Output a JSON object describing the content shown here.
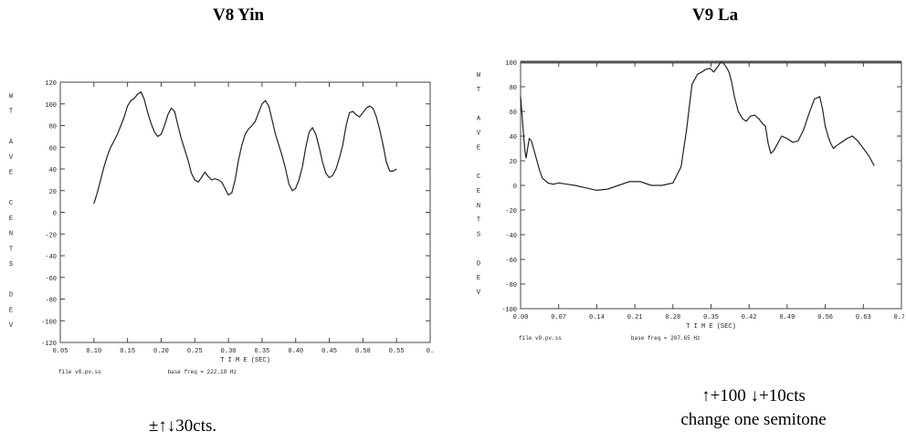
{
  "chart_data": [
    {
      "type": "line",
      "title": "V8 Yin",
      "xlabel": "T I M E (SEC)",
      "ylabel": [
        "W",
        "T",
        "",
        "A",
        "V",
        "E",
        "",
        "C",
        "E",
        "N",
        "T",
        "S",
        "",
        "D",
        "E",
        "V"
      ],
      "xlim": [
        0.05,
        0.6
      ],
      "ylim": [
        -120,
        120
      ],
      "xticks": [
        "0.05",
        "0.10",
        "0.15",
        "0.20",
        "0.25",
        "0.30",
        "0.35",
        "0.40",
        "0.45",
        "0.50",
        "0.55",
        "0."
      ],
      "yticks": [
        "120",
        "100",
        "80",
        "60",
        "40",
        "20",
        "0",
        "-20",
        "-40",
        "-60",
        "-80",
        "-100",
        "-120"
      ],
      "footer_left": "file v8.pv.ss",
      "footer_right": "base freq = 222.18 Hz",
      "caption": [
        "±↑↓30cts."
      ],
      "series": [
        {
          "x": [
            0.1,
            0.105,
            0.11,
            0.115,
            0.12,
            0.125,
            0.13,
            0.135,
            0.14,
            0.145,
            0.15,
            0.155,
            0.16,
            0.165,
            0.17,
            0.175,
            0.18,
            0.185,
            0.19,
            0.195,
            0.2,
            0.205,
            0.21,
            0.215,
            0.22,
            0.225,
            0.23,
            0.235,
            0.24,
            0.245,
            0.25,
            0.255,
            0.26,
            0.265,
            0.27,
            0.275,
            0.28,
            0.285,
            0.29,
            0.295,
            0.3,
            0.305,
            0.31,
            0.315,
            0.32,
            0.325,
            0.33,
            0.335,
            0.34,
            0.345,
            0.35,
            0.355,
            0.36,
            0.365,
            0.37,
            0.375,
            0.38,
            0.385,
            0.39,
            0.395,
            0.4,
            0.405,
            0.41,
            0.415,
            0.42,
            0.425,
            0.43,
            0.435,
            0.44,
            0.445,
            0.45,
            0.455,
            0.46,
            0.465,
            0.47,
            0.475,
            0.48,
            0.485,
            0.49,
            0.495,
            0.5,
            0.505,
            0.51,
            0.515,
            0.52,
            0.525,
            0.53,
            0.535,
            0.54,
            0.545,
            0.55
          ],
          "y": [
            8,
            18,
            30,
            42,
            52,
            60,
            66,
            72,
            80,
            88,
            98,
            103,
            105,
            109,
            111,
            104,
            92,
            82,
            74,
            70,
            72,
            80,
            90,
            96,
            93,
            80,
            68,
            58,
            48,
            36,
            30,
            28,
            32,
            37,
            33,
            30,
            31,
            30,
            28,
            22,
            16,
            18,
            30,
            48,
            62,
            72,
            77,
            80,
            84,
            92,
            100,
            103,
            98,
            85,
            72,
            62,
            52,
            40,
            26,
            20,
            22,
            30,
            42,
            60,
            74,
            78,
            72,
            60,
            46,
            36,
            32,
            34,
            40,
            50,
            62,
            80,
            92,
            93,
            90,
            88,
            92,
            96,
            98,
            96,
            88,
            76,
            62,
            46,
            38,
            38,
            40
          ]
        }
      ]
    },
    {
      "type": "line",
      "title": "V9 La",
      "xlabel": "T I M E (SEC)",
      "ylabel": [
        "W",
        "T",
        "",
        "A",
        "V",
        "E",
        "",
        "C",
        "E",
        "N",
        "T",
        "S",
        "",
        "D",
        "E",
        "V"
      ],
      "xlim": [
        0.0,
        0.7
      ],
      "ylim": [
        -100,
        100
      ],
      "xticks": [
        "0.00",
        "0.07",
        "0.14",
        "0.21",
        "0.28",
        "0.35",
        "0.42",
        "0.49",
        "0.56",
        "0.63",
        "0.70"
      ],
      "yticks": [
        "100",
        "80",
        "60",
        "40",
        "20",
        "0",
        "-20",
        "-40",
        "-60",
        "-80",
        "-100"
      ],
      "footer_left": "file v9.pv.ss",
      "footer_right": "base freq = 207.65 Hz",
      "caption": [
        "↑+100 ↓+10cts",
        "change one semitone"
      ],
      "series": [
        {
          "x": [
            0.0,
            0.003,
            0.006,
            0.008,
            0.01,
            0.013,
            0.016,
            0.02,
            0.025,
            0.03,
            0.035,
            0.04,
            0.05,
            0.06,
            0.07,
            0.085,
            0.1,
            0.12,
            0.14,
            0.16,
            0.18,
            0.2,
            0.22,
            0.24,
            0.26,
            0.28,
            0.295,
            0.305,
            0.315,
            0.325,
            0.333,
            0.34,
            0.348,
            0.355,
            0.362,
            0.368,
            0.373,
            0.378,
            0.383,
            0.388,
            0.393,
            0.4,
            0.408,
            0.415,
            0.422,
            0.43,
            0.438,
            0.445,
            0.45,
            0.455,
            0.46,
            0.465,
            0.47,
            0.48,
            0.49,
            0.5,
            0.51,
            0.52,
            0.53,
            0.54,
            0.55,
            0.555,
            0.56,
            0.565,
            0.57,
            0.575,
            0.58,
            0.59,
            0.6,
            0.61,
            0.62,
            0.63,
            0.64,
            0.645,
            0.65
          ],
          "y": [
            72,
            55,
            38,
            28,
            22,
            30,
            38,
            36,
            28,
            20,
            12,
            6,
            2,
            1,
            2,
            1,
            0,
            -2,
            -4,
            -3,
            0,
            3,
            3,
            0,
            0,
            2,
            15,
            45,
            82,
            90,
            92,
            94,
            95,
            92,
            96,
            100,
            99,
            96,
            92,
            84,
            72,
            60,
            54,
            52,
            56,
            57,
            54,
            50,
            48,
            34,
            26,
            28,
            32,
            40,
            38,
            35,
            36,
            45,
            58,
            70,
            72,
            62,
            48,
            40,
            34,
            30,
            32,
            35,
            38,
            40,
            36,
            30,
            24,
            20,
            16
          ]
        }
      ]
    }
  ]
}
